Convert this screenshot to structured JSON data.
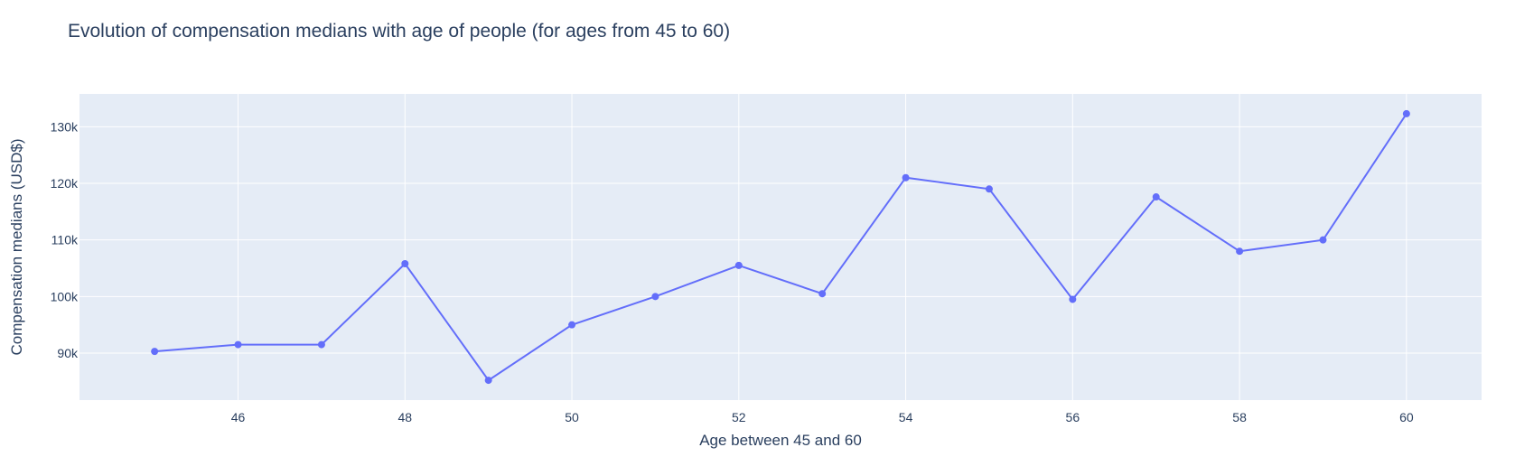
{
  "chart_data": {
    "type": "line",
    "title": "Evolution of compensation medians with age of people (for ages from 45 to 60)",
    "xlabel": "Age between 45 and 60",
    "ylabel": "Compensation medians (USD$)",
    "x": [
      45,
      46,
      47,
      48,
      49,
      50,
      51,
      52,
      53,
      54,
      55,
      56,
      57,
      58,
      59,
      60
    ],
    "series": [
      {
        "values": [
          90300,
          91500,
          91500,
          105800,
          85200,
          95000,
          100000,
          105500,
          100500,
          121000,
          119000,
          99500,
          117600,
          108000,
          110000,
          132300
        ]
      }
    ],
    "xlim": [
      44.1,
      60.9
    ],
    "ylim": [
      81700,
      135800
    ],
    "xticks": [
      46,
      48,
      50,
      52,
      54,
      56,
      58,
      60
    ],
    "xtick_labels": [
      "46",
      "48",
      "50",
      "52",
      "54",
      "56",
      "58",
      "60"
    ],
    "yticks": [
      90000,
      100000,
      110000,
      120000,
      130000
    ],
    "ytick_labels": [
      "90k",
      "100k",
      "110k",
      "120k",
      "130k"
    ],
    "grid": true,
    "legend": false,
    "colors": {
      "line": "#636efa",
      "plot_bg": "#e5ecf6",
      "grid": "#ffffff",
      "text": "#2a3f5f"
    }
  }
}
